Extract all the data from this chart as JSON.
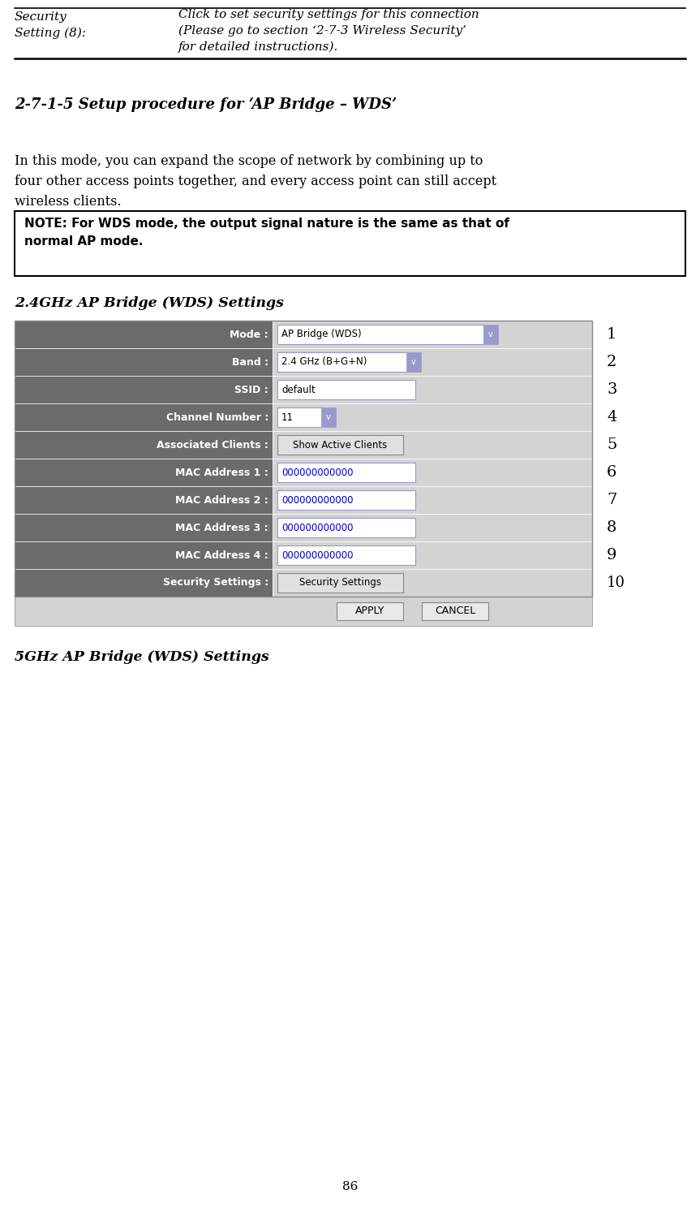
{
  "bg_color": "#ffffff",
  "page_number": "86",
  "section_title": "2-7-1-5 Setup procedure for ‘AP Bridge – WDS’",
  "heading_24": "2.4GHz AP Bridge (WDS) Settings",
  "heading_5g": "5GHz AP Bridge (WDS) Settings",
  "table_rows": [
    {
      "label": "Mode :",
      "value": "AP Bridge (WDS)",
      "has_dropdown": true,
      "num": "1"
    },
    {
      "label": "Band :",
      "value": "2.4 GHz (B+G+N)",
      "has_dropdown": true,
      "num": "2"
    },
    {
      "label": "SSID :",
      "value": "default",
      "has_dropdown": false,
      "num": "3"
    },
    {
      "label": "Channel Number :",
      "value": "11",
      "has_dropdown": true,
      "num": "4"
    },
    {
      "label": "Associated Clients :",
      "value": "Show Active Clients",
      "has_dropdown": false,
      "num": "5",
      "is_button": true
    },
    {
      "label": "MAC Address 1 :",
      "value": "000000000000",
      "has_dropdown": false,
      "num": "6"
    },
    {
      "label": "MAC Address 2 :",
      "value": "000000000000",
      "has_dropdown": false,
      "num": "7"
    },
    {
      "label": "MAC Address 3 :",
      "value": "000000000000",
      "has_dropdown": false,
      "num": "8"
    },
    {
      "label": "MAC Address 4 :",
      "value": "000000000000",
      "has_dropdown": false,
      "num": "9"
    },
    {
      "label": "Security Settings :",
      "value": "Security Settings",
      "has_dropdown": false,
      "num": "10",
      "is_button": true
    }
  ],
  "label_bg": "#6b6b6b",
  "label_fg": "#ffffff",
  "row_bg_light": "#d3d3d3",
  "input_fg": "#0000cc",
  "apply_btn": "APPLY",
  "cancel_btn": "CANCEL"
}
